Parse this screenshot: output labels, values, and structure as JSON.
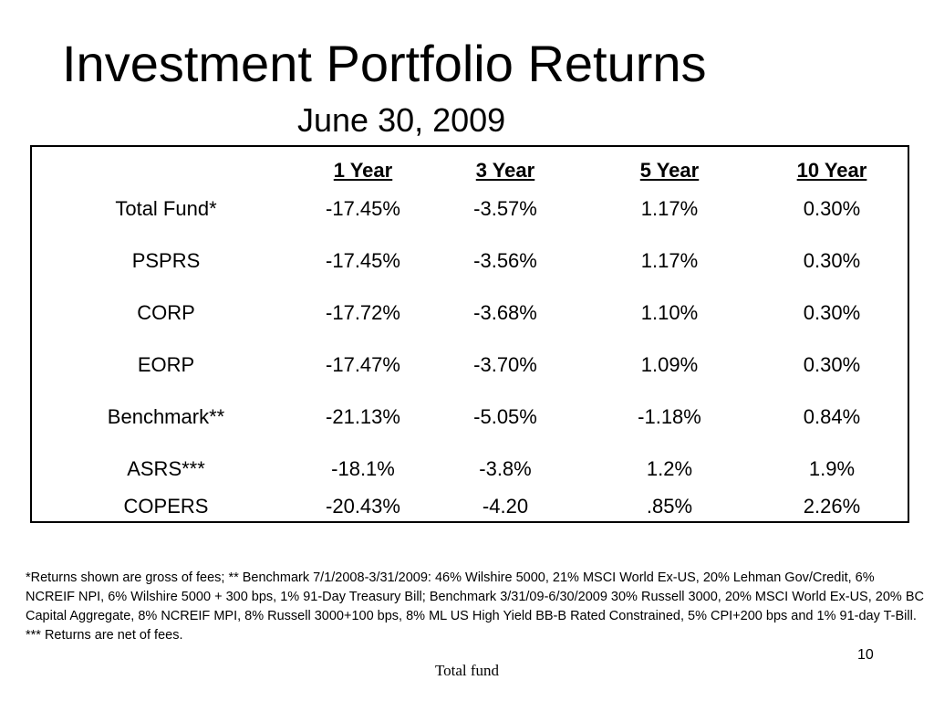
{
  "slide": {
    "title": "Investment Portfolio Returns",
    "subtitle": "June 30, 2009",
    "page_number": "10",
    "footer": "Total fund"
  },
  "table": {
    "headers": [
      "1 Year",
      "3 Year",
      "5 Year",
      "10 Year"
    ],
    "rows": [
      {
        "label": "Total Fund*",
        "values": [
          "-17.45%",
          "-3.57%",
          "1.17%",
          "0.30%"
        ]
      },
      {
        "label": "PSPRS",
        "values": [
          "-17.45%",
          "-3.56%",
          "1.17%",
          "0.30%"
        ]
      },
      {
        "label": "CORP",
        "values": [
          "-17.72%",
          "-3.68%",
          "1.10%",
          "0.30%"
        ]
      },
      {
        "label": "EORP",
        "values": [
          "-17.47%",
          "-3.70%",
          "1.09%",
          "0.30%"
        ]
      },
      {
        "label": "Benchmark**",
        "values": [
          "-21.13%",
          "-5.05%",
          "-1.18%",
          "0.84%"
        ]
      },
      {
        "label": "ASRS***",
        "values": [
          "-18.1%",
          "-3.8%",
          "1.2%",
          "1.9%"
        ]
      },
      {
        "label": "COPERS",
        "values": [
          "-20.43%",
          "-4.20",
          ".85%",
          "2.26%"
        ]
      }
    ]
  },
  "footnote": "*Returns shown are gross of fees; ** Benchmark 7/1/2008-3/31/2009:  46% Wilshire 5000, 21% MSCI World Ex-US, 20% Lehman Gov/Credit, 6% NCREIF NPI, 6% Wilshire 5000 + 300 bps, 1% 91-Day Treasury Bill;   Benchmark 3/31/09-6/30/2009 30% Russell 3000, 20% MSCI World Ex-US, 20% BC Capital Aggregate, 8% NCREIF MPI, 8% Russell 3000+100 bps, 8% ML US High Yield BB-B Rated Constrained, 5% CPI+200 bps and 1% 91-day T-Bill. *** Returns are net of fees."
}
